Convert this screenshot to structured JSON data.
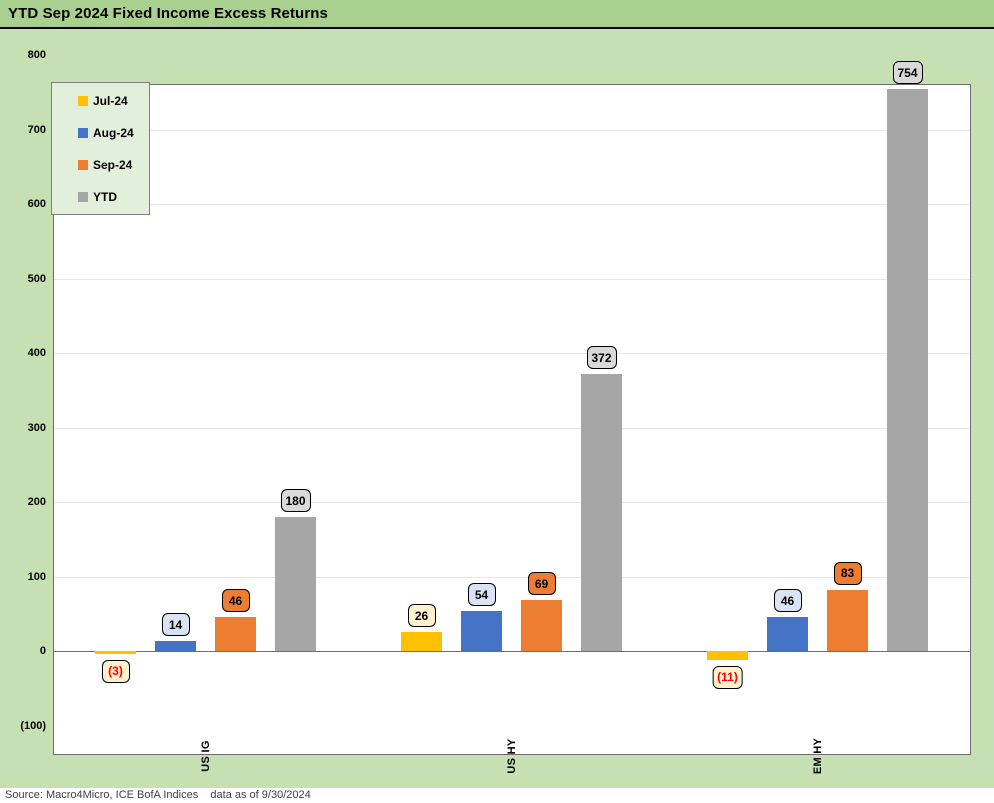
{
  "title": "YTD Sep 2024 Fixed Income Excess Returns",
  "source_note": "Source: Macro4Micro, ICE BofA Indices    data as of 9/30/2024",
  "colors": {
    "title_bar_bg": "#A9D08E",
    "chart_bg": "#C6E0B4",
    "legend_bg": "#E2EFDA",
    "plot_bg": "#FFFFFF",
    "grid_line": "#E7E7E7",
    "axis_line": "#6E6E6E",
    "negative_label_text": "#FF0000"
  },
  "chart_data": {
    "type": "bar",
    "title": "YTD Sep 2024 Fixed Income Excess Returns",
    "categories": [
      "US IG",
      "US HY",
      "EM HY"
    ],
    "series": [
      {
        "name": "Jul-24",
        "color": "#FFC000",
        "label_bg": "#FFF2CC",
        "values": [
          -3,
          26,
          -11
        ],
        "labels": [
          "(3)",
          "26",
          "(11)"
        ]
      },
      {
        "name": "Aug-24",
        "color": "#4472C4",
        "label_bg": "#DAE3F3",
        "values": [
          14,
          54,
          46
        ],
        "labels": [
          "14",
          "54",
          "46"
        ]
      },
      {
        "name": "Sep-24",
        "color": "#ED7D31",
        "label_bg": "#ED7D31",
        "values": [
          46,
          69,
          83
        ],
        "labels": [
          "46",
          "69",
          "83"
        ]
      },
      {
        "name": "YTD",
        "color": "#A6A6A6",
        "label_bg": "#D9D9D9",
        "values": [
          180,
          372,
          754
        ],
        "labels": [
          "180",
          "372",
          "754"
        ]
      }
    ],
    "ylim": [
      -100,
      800
    ],
    "ytick_step": 100,
    "ytick_labels": [
      "800",
      "700",
      "600",
      "500",
      "400",
      "300",
      "200",
      "100",
      "0",
      "(100)"
    ],
    "xlabel": "",
    "ylabel": "",
    "legend_position": "top-left",
    "grid": true
  }
}
